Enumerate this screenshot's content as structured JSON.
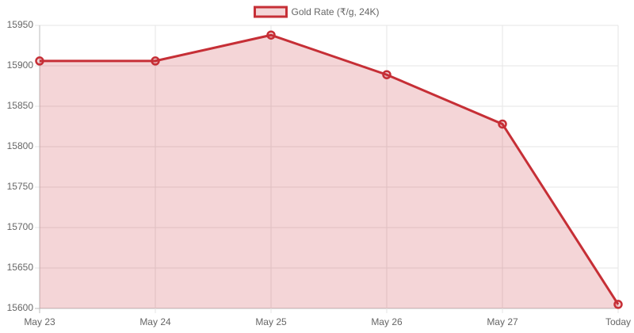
{
  "chart_data": {
    "type": "line",
    "categories": [
      "May 23",
      "May 24",
      "May 25",
      "May 26",
      "May 27",
      "Today"
    ],
    "series": [
      {
        "name": "Gold Rate (₹/g, 24K)",
        "color": "#c62f36",
        "fill": "rgba(198,47,54,0.2)",
        "values": [
          15906,
          15906,
          15938,
          15889,
          15828,
          15605
        ]
      }
    ],
    "ylim": [
      15600,
      15950
    ],
    "yticks": [
      15600,
      15650,
      15700,
      15750,
      15800,
      15850,
      15900,
      15950
    ],
    "grid": true,
    "legend": "top"
  }
}
